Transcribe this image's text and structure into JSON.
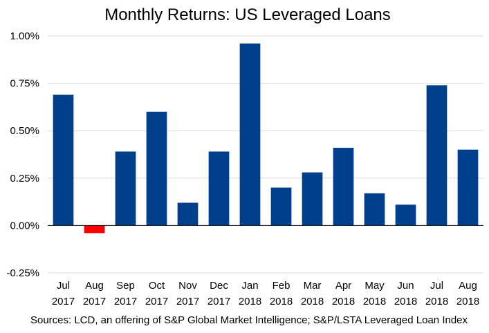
{
  "chart_data": {
    "type": "bar",
    "title": "Monthly Returns: US Leveraged Loans",
    "xlabel": "",
    "ylabel": "",
    "categories": [
      [
        "Jul",
        "2017"
      ],
      [
        "Aug",
        "2017"
      ],
      [
        "Sep",
        "2017"
      ],
      [
        "Oct",
        "2017"
      ],
      [
        "Nov",
        "2017"
      ],
      [
        "Dec",
        "2017"
      ],
      [
        "Jan",
        "2018"
      ],
      [
        "Feb",
        "2018"
      ],
      [
        "Mar",
        "2018"
      ],
      [
        "Apr",
        "2018"
      ],
      [
        "May",
        "2018"
      ],
      [
        "Jun",
        "2018"
      ],
      [
        "Jul",
        "2018"
      ],
      [
        "Aug",
        "2018"
      ]
    ],
    "values": [
      0.69,
      -0.04,
      0.39,
      0.6,
      0.12,
      0.39,
      0.96,
      0.2,
      0.28,
      0.41,
      0.17,
      0.11,
      0.74,
      0.4
    ],
    "ylim": [
      -0.25,
      1.0
    ],
    "yticks": [
      -0.25,
      0.0,
      0.25,
      0.5,
      0.75,
      1.0
    ],
    "ytick_labels": [
      "-0.25%",
      "0.00%",
      "0.25%",
      "0.50%",
      "0.75%",
      "1.00%"
    ],
    "grid": true,
    "colors": {
      "positive": "#003f8c",
      "negative": "#ff0000",
      "grid": "#d9d9d9",
      "axis": "#000000"
    },
    "source": "Sources: LCD, an offering of S&P Global Market Intelligence; S&P/LSTA Leveraged Loan Index"
  }
}
